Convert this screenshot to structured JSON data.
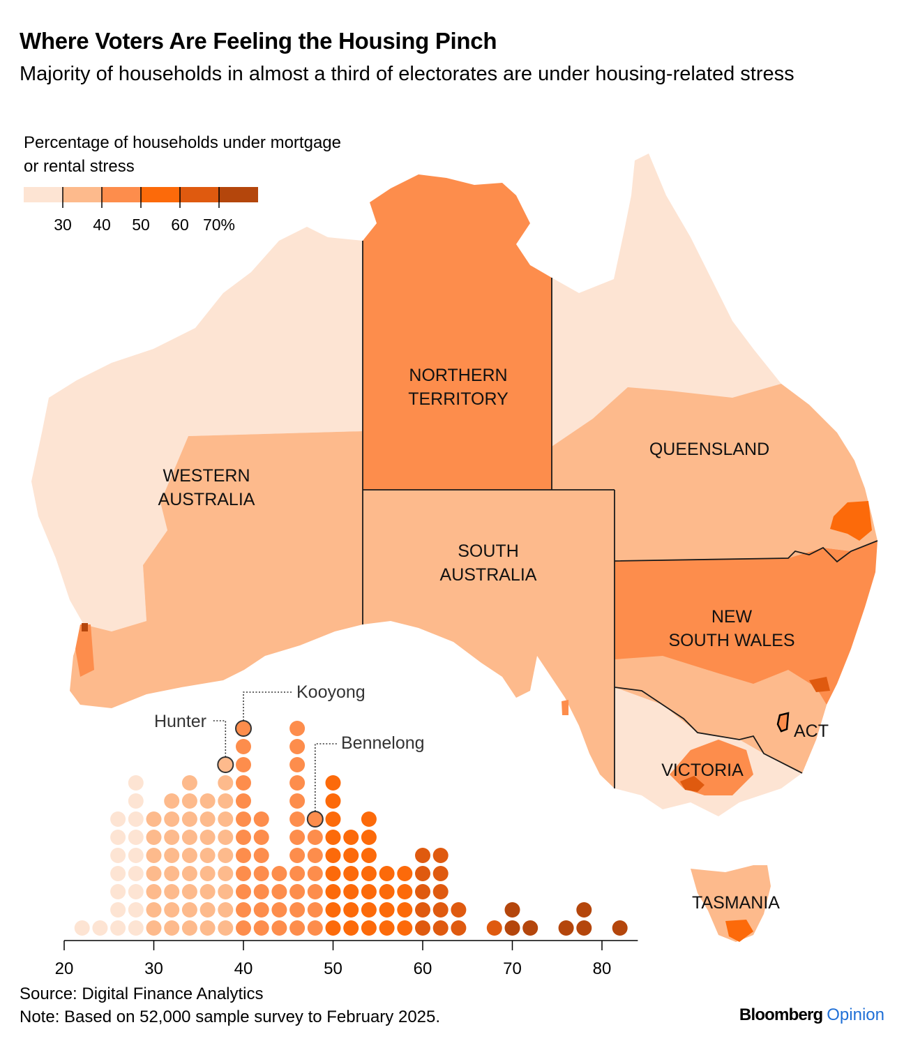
{
  "title": "Where Voters Are Feeling the Housing Pinch",
  "subtitle": "Majority of households in almost a third of electorates are under housing-related stress",
  "legend": {
    "title": "Percentage of households under mortgage or rental stress",
    "tick_labels": [
      "30",
      "40",
      "50",
      "60",
      "70%"
    ],
    "colors": [
      "#fde4d3",
      "#fdba8c",
      "#fd8d4c",
      "#fc6a0a",
      "#df5a0f",
      "#b4460c"
    ]
  },
  "regions": [
    {
      "name": "WESTERN AUSTRALIA",
      "lines": [
        "WESTERN",
        "AUSTRALIA"
      ]
    },
    {
      "name": "NORTHERN TERRITORY",
      "lines": [
        "NORTHERN",
        "TERRITORY"
      ]
    },
    {
      "name": "SOUTH AUSTRALIA",
      "lines": [
        "SOUTH",
        "AUSTRALIA"
      ]
    },
    {
      "name": "QUEENSLAND",
      "lines": [
        "QUEENSLAND"
      ]
    },
    {
      "name": "NEW SOUTH WALES",
      "lines": [
        "NEW",
        "SOUTH WALES"
      ]
    },
    {
      "name": "ACT",
      "lines": [
        "ACT"
      ]
    },
    {
      "name": "VICTORIA",
      "lines": [
        "VICTORIA"
      ]
    },
    {
      "name": "TASMANIA",
      "lines": [
        "TASMANIA"
      ]
    }
  ],
  "chart_data": {
    "type": "scatter",
    "description_unit": "Each dot is one electorate, stacked by percentage of households under stress (2-point bins)",
    "xlim": [
      20,
      84
    ],
    "x_ticks": [
      20,
      30,
      40,
      50,
      60,
      70,
      80
    ],
    "bins": [
      {
        "x": 22,
        "count": 1
      },
      {
        "x": 24,
        "count": 1
      },
      {
        "x": 26,
        "count": 7
      },
      {
        "x": 28,
        "count": 9
      },
      {
        "x": 30,
        "count": 7
      },
      {
        "x": 32,
        "count": 8
      },
      {
        "x": 34,
        "count": 9
      },
      {
        "x": 36,
        "count": 8
      },
      {
        "x": 38,
        "count": 10
      },
      {
        "x": 40,
        "count": 12
      },
      {
        "x": 42,
        "count": 7
      },
      {
        "x": 44,
        "count": 4
      },
      {
        "x": 46,
        "count": 12
      },
      {
        "x": 48,
        "count": 7
      },
      {
        "x": 50,
        "count": 9
      },
      {
        "x": 52,
        "count": 6
      },
      {
        "x": 54,
        "count": 7
      },
      {
        "x": 56,
        "count": 4
      },
      {
        "x": 58,
        "count": 4
      },
      {
        "x": 60,
        "count": 5
      },
      {
        "x": 62,
        "count": 5
      },
      {
        "x": 64,
        "count": 2
      },
      {
        "x": 68,
        "count": 1
      },
      {
        "x": 70,
        "count": 2
      },
      {
        "x": 72,
        "count": 1
      },
      {
        "x": 76,
        "count": 1
      },
      {
        "x": 78,
        "count": 2
      },
      {
        "x": 82,
        "count": 1
      }
    ],
    "highlighted": [
      {
        "label": "Hunter",
        "x": 38,
        "level": 10
      },
      {
        "label": "Kooyong",
        "x": 40,
        "level": 12
      },
      {
        "label": "Bennelong",
        "x": 48,
        "level": 7
      }
    ],
    "color_breaks": [
      30,
      40,
      50,
      60,
      70
    ]
  },
  "footer": {
    "source": "Source: Digital Finance Analytics",
    "note": "Note: Based on 52,000 sample survey to February 2025.",
    "brand_main": "Bloomberg",
    "brand_sub": "Opinion"
  }
}
